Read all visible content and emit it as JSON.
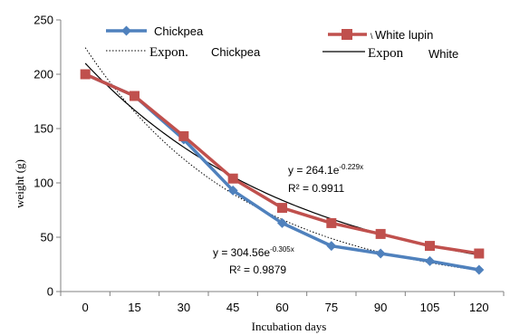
{
  "chart_data": {
    "type": "line",
    "x": [
      0,
      15,
      30,
      45,
      60,
      75,
      90,
      105,
      120
    ],
    "xlabel": "Incubation days",
    "ylabel": "weight (g)",
    "ylim": [
      0,
      250
    ],
    "yticks": [
      "0",
      "50",
      "100",
      "150",
      "200",
      "250"
    ],
    "xticks": [
      "0",
      "15",
      "30",
      "45",
      "60",
      "75",
      "90",
      "105",
      "120"
    ],
    "series": [
      {
        "name": "Chickpea",
        "values": [
          200,
          180,
          140,
          93,
          63,
          42,
          35,
          28,
          20
        ],
        "color": "#4f81bd",
        "marker": "diamond",
        "trend": {
          "a": 304.56,
          "b": -0.305,
          "r2": "0.9879",
          "color": "#000000",
          "style": "dotted"
        }
      },
      {
        "name": "White lupin",
        "values": [
          200,
          180,
          143,
          104,
          77,
          63,
          53,
          42,
          35
        ],
        "color": "#c0504d",
        "marker": "square",
        "trend": {
          "a": 264.1,
          "b": -0.229,
          "r2": "0.9911",
          "color": "#000000",
          "style": "solid"
        }
      }
    ],
    "legend": {
      "placement": "top",
      "entries": [
        {
          "label": "Chickpea",
          "kind": "series"
        },
        {
          "label": "White lupin",
          "prefix": "\\",
          "kind": "series"
        },
        {
          "label": "Chickpea",
          "prefix": "Expon.",
          "kind": "trend"
        },
        {
          "label": "White",
          "prefix": "Expon",
          "kind": "trend"
        }
      ]
    },
    "annotations": [
      {
        "base": "y = 264.1e",
        "exp": "-0.229x",
        "r2_label": "R² = 0.9911"
      },
      {
        "base": "y = 304.56e",
        "exp": "-0.305x",
        "r2_label": "R² = 0.9879"
      }
    ],
    "grid": false
  }
}
